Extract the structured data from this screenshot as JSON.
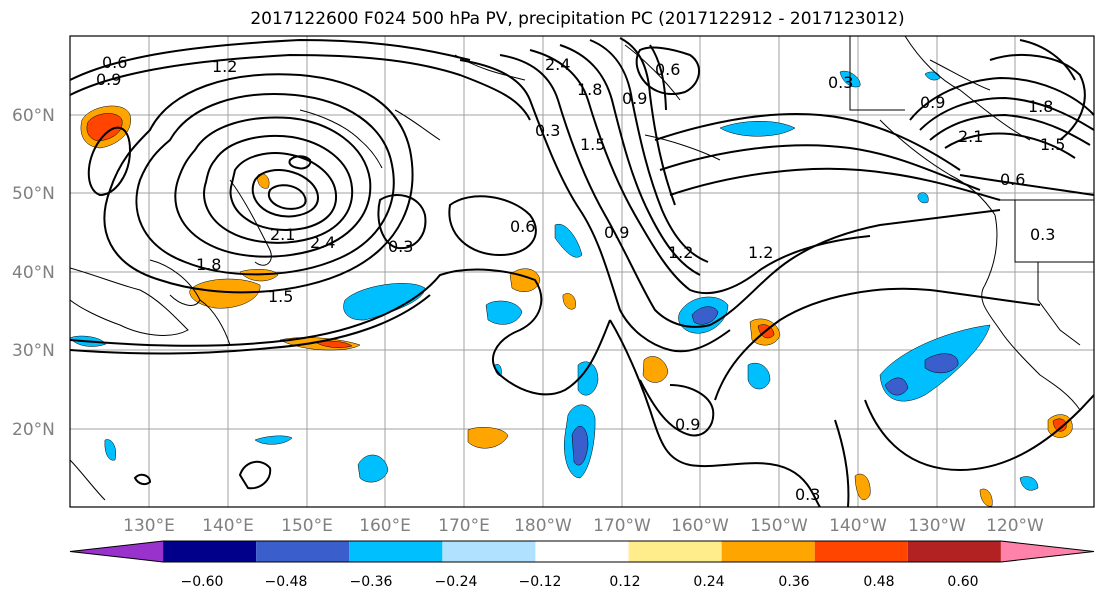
{
  "title": "2017122600 F024 500 hPa PV, precipitation PC (2017122912 - 2017123012)",
  "latitude_labels": [
    "60°N",
    "50°N",
    "40°N",
    "30°N",
    "20°N"
  ],
  "longitude_labels": [
    "130°E",
    "140°E",
    "150°E",
    "160°E",
    "170°E",
    "180°W",
    "170°W",
    "160°W",
    "150°W",
    "140°W",
    "130°W",
    "120°W"
  ],
  "contour_labels": [
    "0.6",
    "0.9",
    "1.2",
    "1.8",
    "2.4",
    "1.5",
    "0.3",
    "1.8",
    "2.4",
    "2.1",
    "1.2",
    "0.6",
    "0.9",
    "0.3",
    "0.9",
    "1.8",
    "2.1",
    "1.5",
    "0.6",
    "0.3",
    "0.6",
    "0.9",
    "1.2",
    "0.9",
    "0.3",
    "1.5",
    "0.3"
  ],
  "colorbar": {
    "colors": [
      "#9932cc",
      "#00008b",
      "#3a5fcd",
      "#00bfff",
      "#b0e2ff",
      "#ffffff",
      "#ffec8b",
      "#ffa500",
      "#ff4500",
      "#b22222",
      "#ff82ab"
    ],
    "tick_labels": [
      "−0.60",
      "−0.48",
      "−0.36",
      "−0.24",
      "−0.12",
      "0.12",
      "0.24",
      "0.36",
      "0.48",
      "0.60"
    ]
  }
}
